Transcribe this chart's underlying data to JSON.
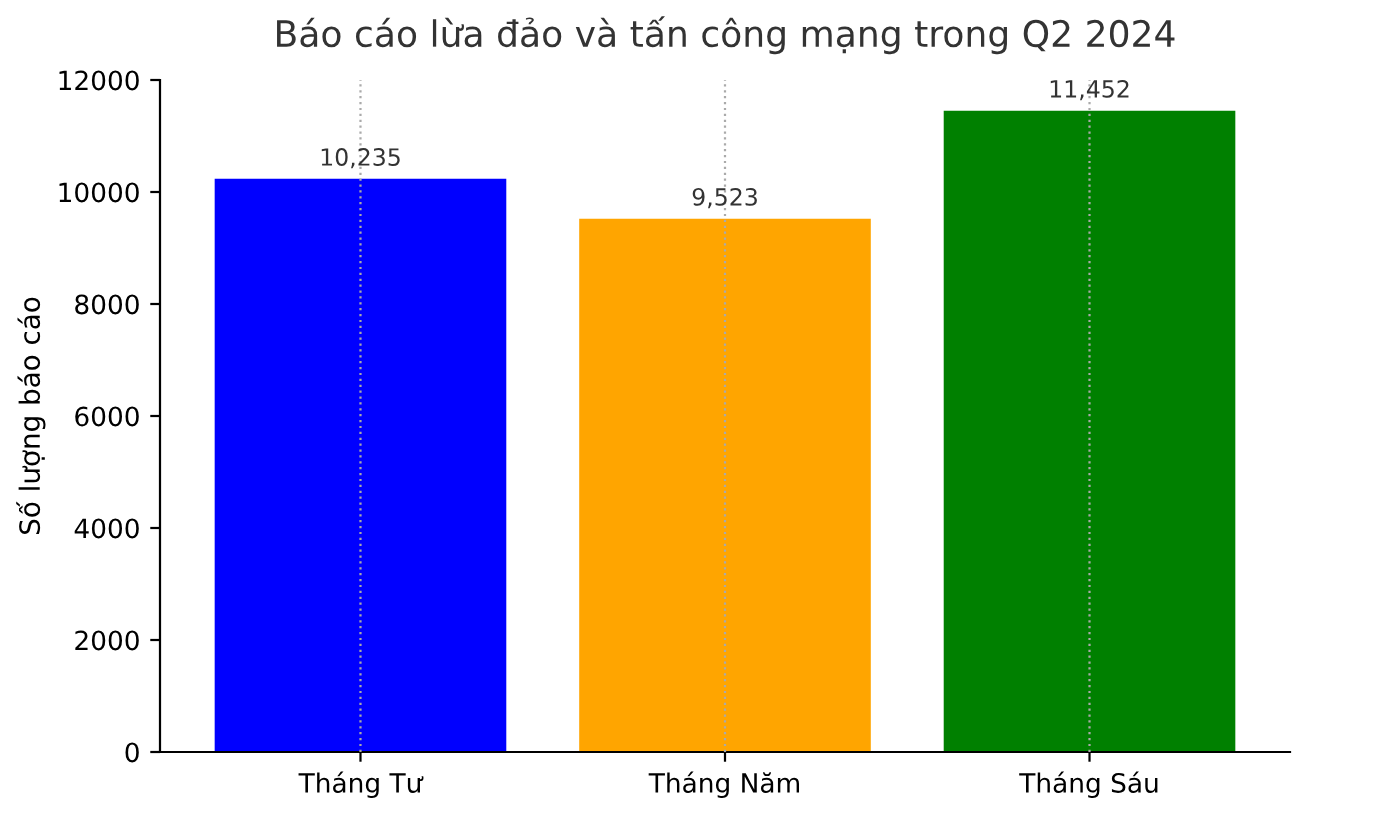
{
  "chart_data": {
    "type": "bar",
    "title": "Báo cáo lừa đảo và tấn công mạng trong Q2 2024",
    "ylabel": "Số lượng báo cáo",
    "categories": [
      "Tháng Tư",
      "Tháng Năm",
      "Tháng Sáu"
    ],
    "values": [
      10235,
      9523,
      11452
    ],
    "colors": [
      "#0000ff",
      "#ffa500",
      "#008000"
    ],
    "value_labels": [
      "10,235",
      "9,523",
      "11,452"
    ],
    "ylim": [
      0,
      12000
    ],
    "yticks": [
      0,
      2000,
      4000,
      6000,
      8000,
      10000,
      12000
    ],
    "grid": "x"
  }
}
